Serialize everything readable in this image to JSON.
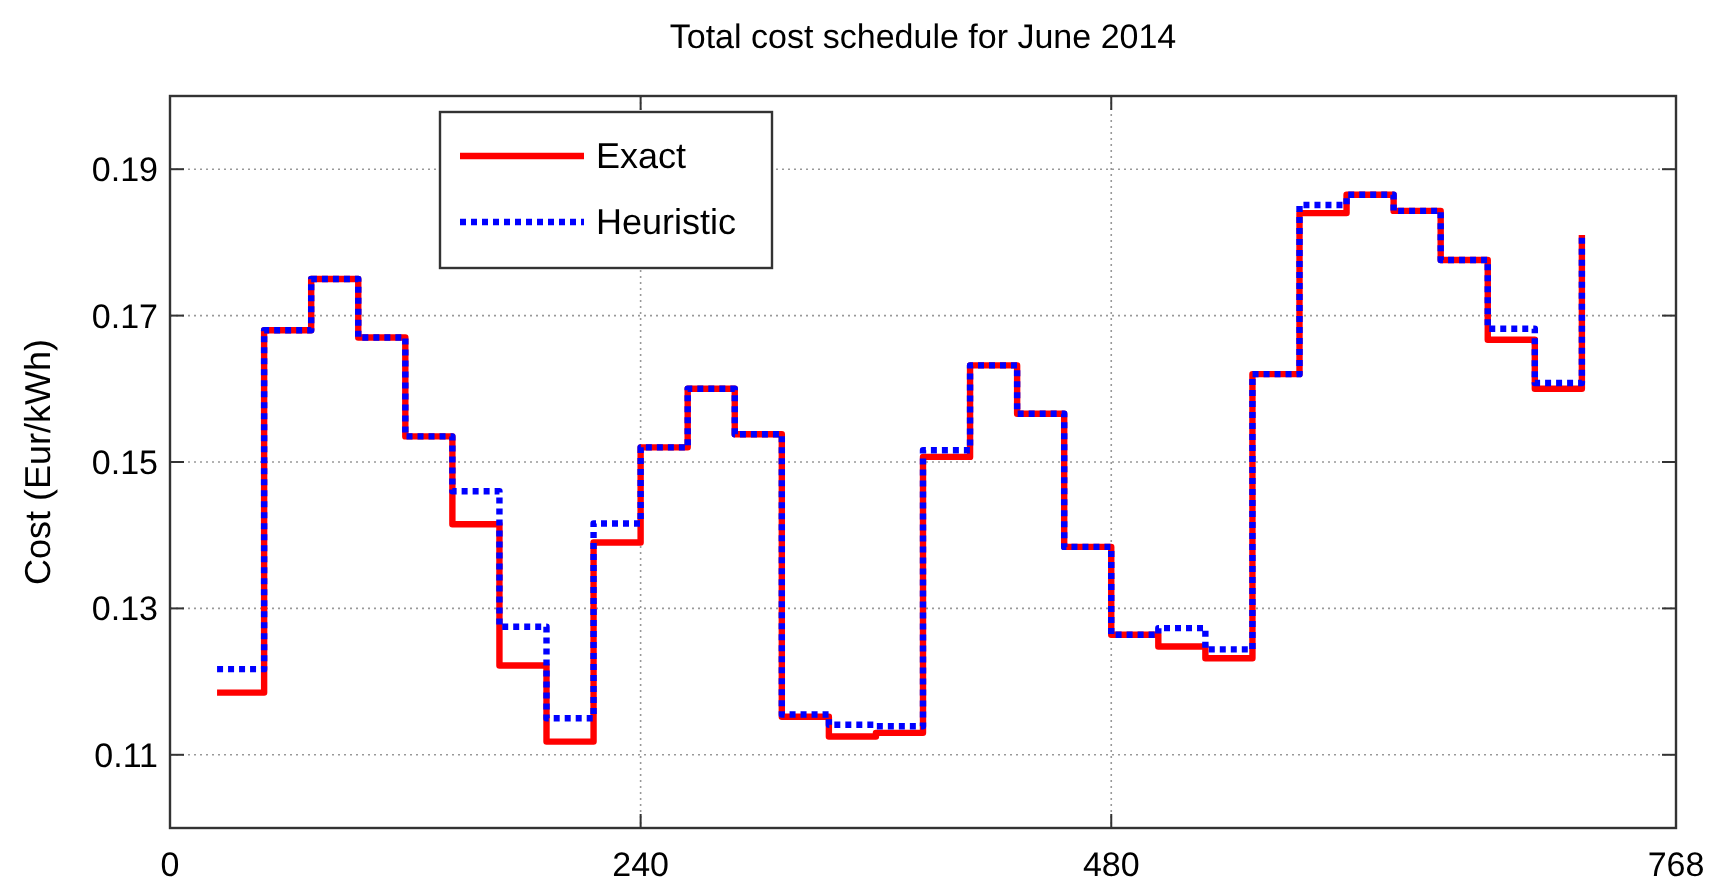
{
  "chart_data": {
    "type": "step",
    "title": "Total cost schedule for June 2014",
    "ylabel": "Cost (Eur/kWh)",
    "x": [
      24,
      48,
      72,
      96,
      120,
      144,
      168,
      192,
      216,
      240,
      264,
      288,
      312,
      336,
      360,
      384,
      408,
      432,
      456,
      480,
      504,
      528,
      552,
      576,
      600,
      624,
      648,
      672,
      696,
      720
    ],
    "series": [
      {
        "name": "Exact",
        "color": "#ff0000",
        "line_style": "solid",
        "values": [
          0.1185,
          0.168,
          0.175,
          0.167,
          0.1535,
          0.1415,
          0.1222,
          0.1118,
          0.139,
          0.152,
          0.16,
          0.1538,
          0.1152,
          0.1125,
          0.113,
          0.1507,
          0.1632,
          0.1566,
          0.1384,
          0.1264,
          0.1248,
          0.1232,
          0.162,
          0.184,
          0.1865,
          0.1843,
          0.1776,
          0.1667,
          0.16,
          0.181
        ]
      },
      {
        "name": "Heuristic",
        "color": "#0000ff",
        "line_style": "dotted",
        "values": [
          0.1217,
          0.168,
          0.175,
          0.167,
          0.1535,
          0.146,
          0.1275,
          0.115,
          0.1416,
          0.152,
          0.16,
          0.1538,
          0.1155,
          0.1141,
          0.1139,
          0.1516,
          0.1632,
          0.1566,
          0.1384,
          0.1264,
          0.1273,
          0.1244,
          0.162,
          0.1851,
          0.1865,
          0.1843,
          0.1776,
          0.1682,
          0.1608,
          0.181
        ]
      }
    ],
    "xlim": [
      0,
      768
    ],
    "xticks": [
      0,
      240,
      480,
      768
    ],
    "ylim": [
      0.1,
      0.2
    ],
    "yticks": [
      {
        "value": 0.11,
        "label": "0.11"
      },
      {
        "value": 0.13,
        "label": "0.13"
      },
      {
        "value": 0.15,
        "label": "0.15"
      },
      {
        "value": 0.17,
        "label": "0.17"
      },
      {
        "value": 0.19,
        "label": "0.19"
      }
    ],
    "grid": true,
    "legend": "top left",
    "marker": "none"
  }
}
